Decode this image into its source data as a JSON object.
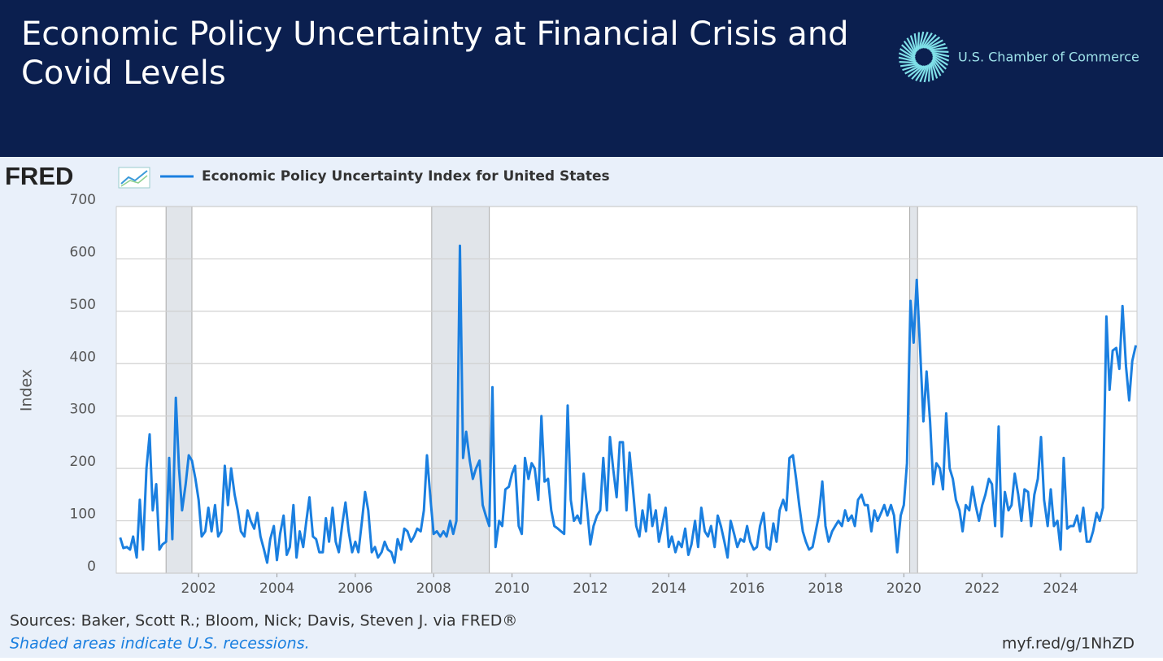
{
  "title_line1": "Economic Policy Uncertainty at Financial Crisis and",
  "title_line2": "Covid Levels",
  "brand": "U.S. Chamber of Commerce",
  "chart_data": {
    "type": "line",
    "logo": "FRED",
    "y_label": "Index",
    "sources": "Sources: Baker, Scott R.; Bloom, Nick; Davis, Steven J. via FRED®",
    "note": "Shaded areas indicate U.S. recessions.",
    "link": "myf.red/g/1NhZD",
    "xlim": [
      1999.9,
      2025.95
    ],
    "xticks": [
      2002,
      2004,
      2006,
      2008,
      2010,
      2012,
      2014,
      2016,
      2018,
      2020,
      2022,
      2024
    ],
    "ylim": [
      0,
      700
    ],
    "yticks": [
      0,
      100,
      200,
      300,
      400,
      500,
      600,
      700
    ],
    "grid": true,
    "recessions": [
      {
        "start": 2001.17,
        "end": 2001.83
      },
      {
        "start": 2007.95,
        "end": 2009.42
      },
      {
        "start": 2020.15,
        "end": 2020.35
      }
    ],
    "x": [
      2000.0,
      2000.08,
      2000.17,
      2000.25,
      2000.33,
      2000.42,
      2000.5,
      2000.58,
      2000.67,
      2000.75,
      2000.83,
      2000.92,
      2001.0,
      2001.08,
      2001.17,
      2001.25,
      2001.33,
      2001.42,
      2001.5,
      2001.58,
      2001.67,
      2001.75,
      2001.83,
      2001.92,
      2002.0,
      2002.08,
      2002.17,
      2002.25,
      2002.33,
      2002.42,
      2002.5,
      2002.58,
      2002.67,
      2002.75,
      2002.83,
      2002.92,
      2003.0,
      2003.08,
      2003.17,
      2003.25,
      2003.33,
      2003.42,
      2003.5,
      2003.58,
      2003.67,
      2003.75,
      2003.83,
      2003.92,
      2004.0,
      2004.08,
      2004.17,
      2004.25,
      2004.33,
      2004.42,
      2004.5,
      2004.58,
      2004.67,
      2004.75,
      2004.83,
      2004.92,
      2005.0,
      2005.08,
      2005.17,
      2005.25,
      2005.33,
      2005.42,
      2005.5,
      2005.58,
      2005.67,
      2005.75,
      2005.83,
      2005.92,
      2006.0,
      2006.08,
      2006.17,
      2006.25,
      2006.33,
      2006.42,
      2006.5,
      2006.58,
      2006.67,
      2006.75,
      2006.83,
      2006.92,
      2007.0,
      2007.08,
      2007.17,
      2007.25,
      2007.33,
      2007.42,
      2007.5,
      2007.58,
      2007.67,
      2007.75,
      2007.83,
      2007.92,
      2008.0,
      2008.08,
      2008.17,
      2008.25,
      2008.33,
      2008.42,
      2008.5,
      2008.58,
      2008.67,
      2008.75,
      2008.83,
      2008.92,
      2009.0,
      2009.08,
      2009.17,
      2009.25,
      2009.33,
      2009.42,
      2009.5,
      2009.58,
      2009.67,
      2009.75,
      2009.83,
      2009.92,
      2010.0,
      2010.08,
      2010.17,
      2010.25,
      2010.33,
      2010.42,
      2010.5,
      2010.58,
      2010.67,
      2010.75,
      2010.83,
      2010.92,
      2011.0,
      2011.08,
      2011.17,
      2011.25,
      2011.33,
      2011.42,
      2011.5,
      2011.58,
      2011.67,
      2011.75,
      2011.83,
      2011.92,
      2012.0,
      2012.08,
      2012.17,
      2012.25,
      2012.33,
      2012.42,
      2012.5,
      2012.58,
      2012.67,
      2012.75,
      2012.83,
      2012.92,
      2013.0,
      2013.08,
      2013.17,
      2013.25,
      2013.33,
      2013.42,
      2013.5,
      2013.58,
      2013.67,
      2013.75,
      2013.83,
      2013.92,
      2014.0,
      2014.08,
      2014.17,
      2014.25,
      2014.33,
      2014.42,
      2014.5,
      2014.58,
      2014.67,
      2014.75,
      2014.83,
      2014.92,
      2015.0,
      2015.08,
      2015.17,
      2015.25,
      2015.33,
      2015.42,
      2015.5,
      2015.58,
      2015.67,
      2015.75,
      2015.83,
      2015.92,
      2016.0,
      2016.08,
      2016.17,
      2016.25,
      2016.33,
      2016.42,
      2016.5,
      2016.58,
      2016.67,
      2016.75,
      2016.83,
      2016.92,
      2017.0,
      2017.08,
      2017.17,
      2017.25,
      2017.33,
      2017.42,
      2017.5,
      2017.58,
      2017.67,
      2017.75,
      2017.83,
      2017.92,
      2018.0,
      2018.08,
      2018.17,
      2018.25,
      2018.33,
      2018.42,
      2018.5,
      2018.58,
      2018.67,
      2018.75,
      2018.83,
      2018.92,
      2019.0,
      2019.08,
      2019.17,
      2019.25,
      2019.33,
      2019.42,
      2019.5,
      2019.58,
      2019.67,
      2019.75,
      2019.83,
      2019.92,
      2020.0,
      2020.08,
      2020.17,
      2020.25,
      2020.33,
      2020.42,
      2020.5,
      2020.58,
      2020.67,
      2020.75,
      2020.83,
      2020.92,
      2021.0,
      2021.08,
      2021.17,
      2021.25,
      2021.33,
      2021.42,
      2021.5,
      2021.58,
      2021.67,
      2021.75,
      2021.83,
      2021.92,
      2022.0,
      2022.08,
      2022.17,
      2022.25,
      2022.33,
      2022.42,
      2022.5,
      2022.58,
      2022.67,
      2022.75,
      2022.83,
      2022.92,
      2023.0,
      2023.08,
      2023.17,
      2023.25,
      2023.33,
      2023.42,
      2023.5,
      2023.58,
      2023.67,
      2023.75,
      2023.83,
      2023.92,
      2024.0,
      2024.08,
      2024.17,
      2024.25,
      2024.33,
      2024.42,
      2024.5,
      2024.58,
      2024.67,
      2024.75,
      2024.83,
      2024.92,
      2025.0,
      2025.08,
      2025.17,
      2025.25,
      2025.33,
      2025.42,
      2025.5,
      2025.58,
      2025.67,
      2025.75,
      2025.83,
      2025.92
    ],
    "series": [
      {
        "name": "Economic Policy Uncertainty Index for United States",
        "color": "#1a7fe0",
        "values": [
          68,
          48,
          50,
          45,
          70,
          30,
          140,
          45,
          200,
          265,
          120,
          170,
          45,
          55,
          60,
          220,
          65,
          335,
          200,
          120,
          170,
          225,
          215,
          180,
          140,
          70,
          80,
          125,
          80,
          130,
          70,
          80,
          205,
          130,
          200,
          150,
          120,
          80,
          70,
          120,
          100,
          85,
          115,
          70,
          45,
          20,
          65,
          90,
          25,
          75,
          110,
          35,
          50,
          130,
          30,
          80,
          50,
          100,
          145,
          70,
          65,
          40,
          40,
          105,
          60,
          125,
          60,
          40,
          95,
          135,
          80,
          40,
          60,
          40,
          100,
          155,
          120,
          40,
          50,
          30,
          40,
          60,
          45,
          40,
          20,
          65,
          45,
          85,
          80,
          60,
          70,
          85,
          80,
          120,
          225,
          140,
          75,
          80,
          70,
          80,
          70,
          100,
          75,
          100,
          625,
          220,
          270,
          215,
          180,
          200,
          215,
          130,
          110,
          90,
          355,
          50,
          100,
          90,
          160,
          165,
          190,
          205,
          90,
          75,
          220,
          180,
          210,
          200,
          140,
          300,
          175,
          180,
          120,
          90,
          85,
          80,
          75,
          320,
          140,
          100,
          110,
          95,
          190,
          120,
          55,
          90,
          110,
          120,
          220,
          120,
          260,
          200,
          145,
          250,
          250,
          120,
          230,
          165,
          90,
          70,
          120,
          80,
          150,
          90,
          120,
          60,
          90,
          125,
          50,
          70,
          40,
          60,
          50,
          85,
          35,
          55,
          100,
          50,
          125,
          80,
          70,
          90,
          50,
          110,
          90,
          60,
          30,
          100,
          75,
          50,
          65,
          60,
          90,
          60,
          45,
          50,
          90,
          115,
          50,
          45,
          95,
          60,
          120,
          140,
          120,
          220,
          225,
          180,
          130,
          80,
          60,
          45,
          50,
          80,
          110,
          175,
          90,
          60,
          80,
          90,
          100,
          90,
          120,
          100,
          110,
          90,
          140,
          150,
          130,
          130,
          80,
          120,
          100,
          115,
          130,
          110,
          130,
          110,
          40,
          110,
          130,
          210,
          520,
          440,
          560,
          420,
          290,
          385,
          290,
          170,
          210,
          200,
          160,
          305,
          200,
          180,
          140,
          120,
          80,
          130,
          120,
          165,
          130,
          100,
          130,
          150,
          180,
          170,
          90,
          280,
          70,
          155,
          120,
          130,
          190,
          150,
          100,
          160,
          155,
          90,
          150,
          180,
          260,
          140,
          90,
          160,
          90,
          100,
          45,
          220,
          85,
          90,
          90,
          110,
          80,
          125,
          60,
          60,
          80,
          115,
          100,
          125,
          490,
          350,
          425,
          430,
          390,
          510,
          395,
          330,
          405,
          435
        ]
      }
    ]
  }
}
